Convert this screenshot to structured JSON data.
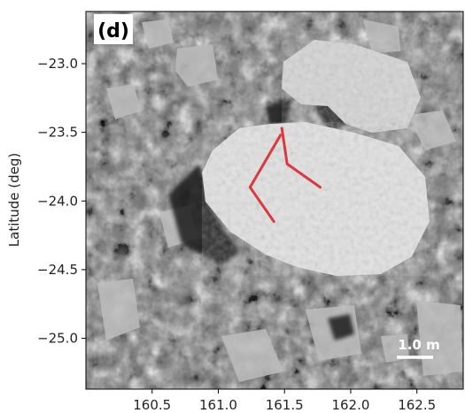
{
  "panel_label": "(d)",
  "axes": {
    "ylabel": "Latitude (deg)",
    "x_ticks": [
      "160.5",
      "161.0",
      "161.5",
      "162.0",
      "162.5"
    ],
    "x_tick_values": [
      160.5,
      161.0,
      161.5,
      162.0,
      162.5
    ],
    "y_ticks": [
      "−23.0",
      "−23.5",
      "−24.0",
      "−24.5",
      "−25.0"
    ],
    "y_tick_values": [
      -23.0,
      -23.5,
      -24.0,
      -24.5,
      -25.0
    ],
    "x_range": [
      160.0,
      162.85
    ],
    "y_range": [
      -22.62,
      -25.37
    ]
  },
  "scale_bar": {
    "label": "1.0 m",
    "color": "#ffffff"
  },
  "traces": {
    "color": "#d9272e",
    "lines": [
      [
        [
          161.48,
          -23.47
        ],
        [
          161.52,
          -23.73
        ],
        [
          161.77,
          -23.9
        ]
      ],
      [
        [
          161.47,
          -23.52
        ],
        [
          161.24,
          -23.9
        ],
        [
          161.42,
          -24.15
        ]
      ]
    ]
  }
}
